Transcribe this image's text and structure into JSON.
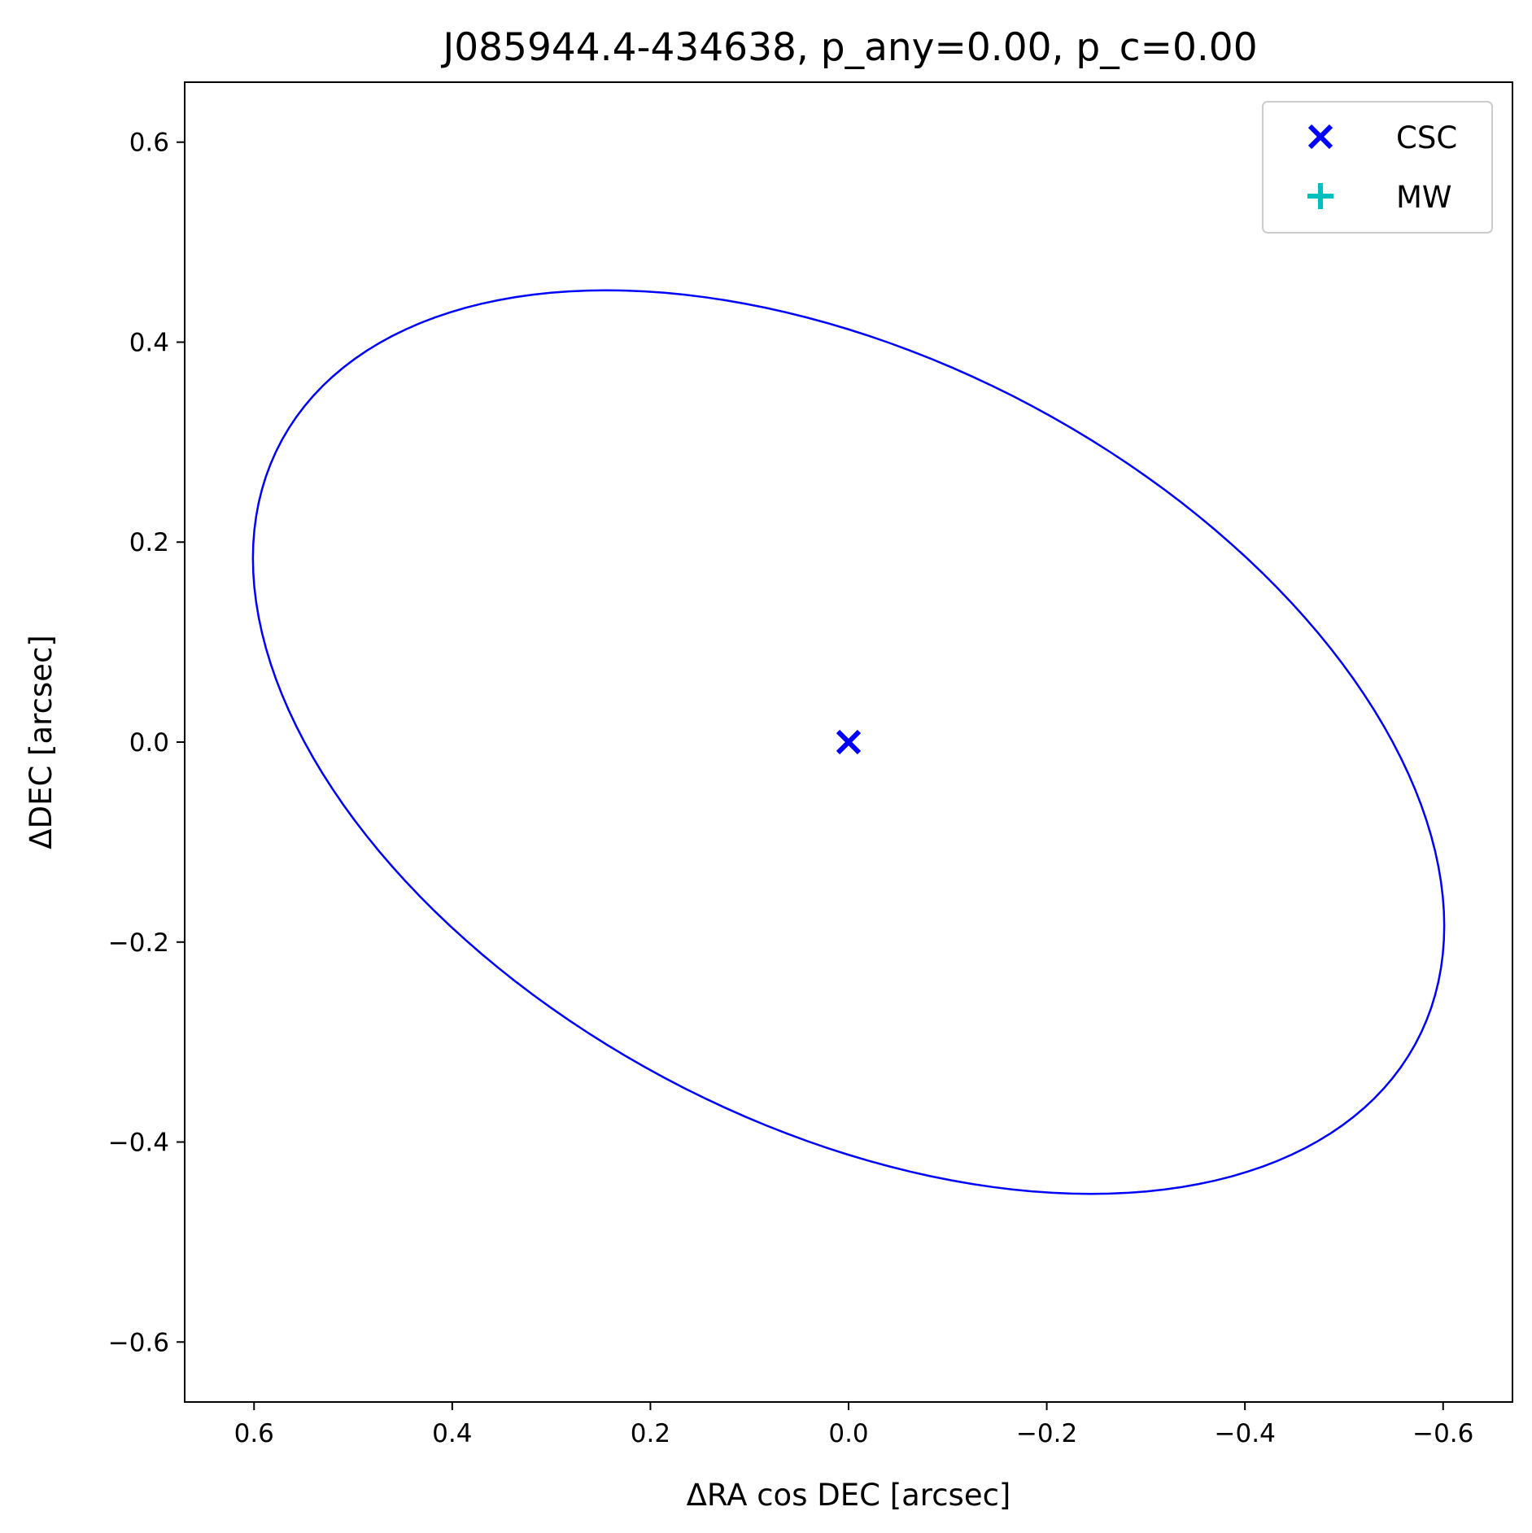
{
  "chart_data": {
    "type": "scatter",
    "title": "J085944.4-434638, p_any=0.00, p_c=0.00",
    "xlabel": "ΔRA cos DEC [arcsec]",
    "ylabel": "ΔDEC [arcsec]",
    "xlim": [
      0.67,
      -0.67
    ],
    "ylim": [
      -0.66,
      0.66
    ],
    "x_inverted": true,
    "xticks": [
      0.6,
      0.4,
      0.2,
      0.0,
      -0.2,
      -0.4,
      -0.6
    ],
    "xtick_labels": [
      "0.6",
      "0.4",
      "0.2",
      "0.0",
      "−0.2",
      "−0.4",
      "−0.6"
    ],
    "yticks": [
      0.6,
      0.4,
      0.2,
      0.0,
      -0.2,
      -0.4,
      -0.6
    ],
    "ytick_labels": [
      "0.6",
      "0.4",
      "0.2",
      "0.0",
      "−0.2",
      "−0.4",
      "−0.6"
    ],
    "grid": false,
    "legend_position": "top-right",
    "legend": [
      {
        "label": "CSC",
        "marker": "x",
        "color": "#0000ff"
      },
      {
        "label": "MW",
        "marker": "+",
        "color": "#00bfbf"
      }
    ],
    "series": [
      {
        "name": "CSC",
        "marker": "x",
        "color": "#0000ff",
        "points": [
          {
            "x": 0.0,
            "y": 0.0
          }
        ]
      },
      {
        "name": "MW",
        "marker": "+",
        "color": "#00bfbf",
        "points": []
      }
    ],
    "ellipse": {
      "color": "#0000ff",
      "center": [
        0.0,
        0.0
      ],
      "outline_points": [
        {
          "x": 0.588,
          "y": 0.094
        },
        {
          "x": 0.125,
          "y": 0.442
        },
        {
          "x": -0.588,
          "y": -0.094
        },
        {
          "x": -0.125,
          "y": -0.442
        }
      ]
    }
  }
}
